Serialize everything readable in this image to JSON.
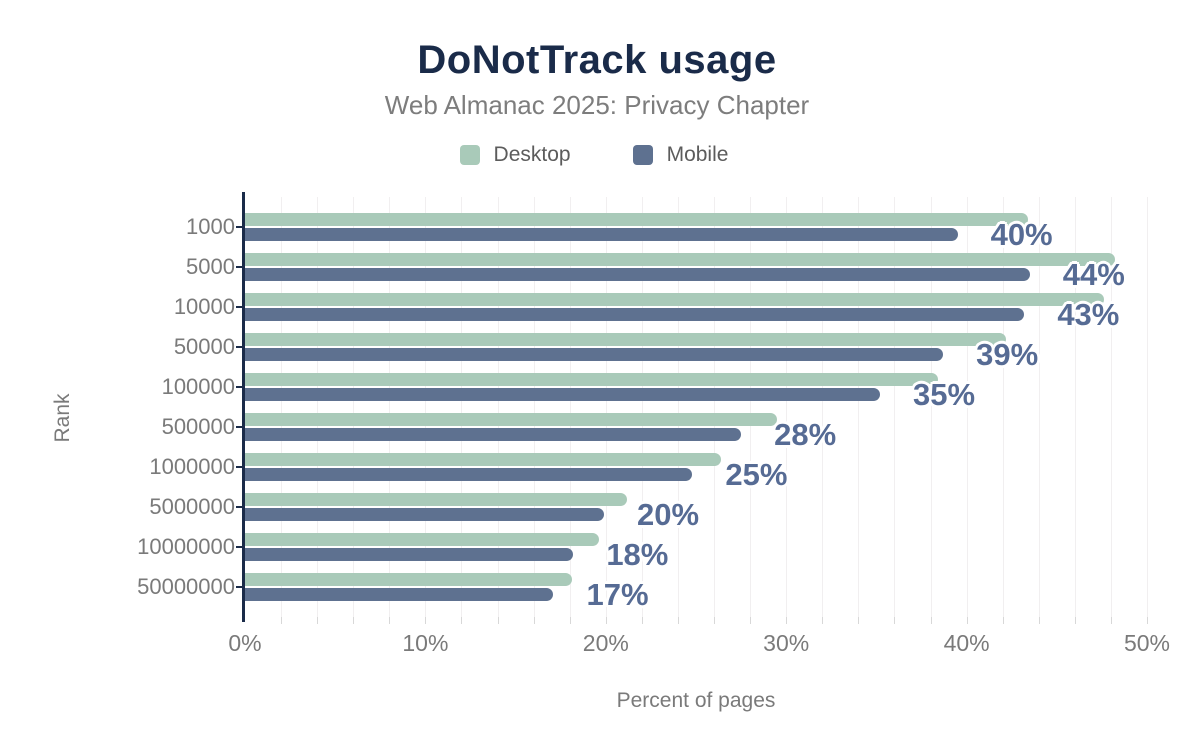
{
  "chart_data": {
    "type": "bar",
    "orientation": "horizontal",
    "title": "DoNotTrack usage",
    "subtitle": "Web Almanac 2025: Privacy Chapter",
    "xlabel": "Percent of pages",
    "ylabel": "Rank",
    "xlim": [
      0,
      50
    ],
    "x_tick_values": [
      0,
      10,
      20,
      30,
      40,
      50
    ],
    "x_tick_labels": [
      "0%",
      "10%",
      "20%",
      "30%",
      "40%",
      "50%"
    ],
    "grid": {
      "visible": true,
      "vertical_every_pct": 2
    },
    "legend_position": "top",
    "categories": [
      "1000",
      "5000",
      "10000",
      "50000",
      "100000",
      "500000",
      "1000000",
      "5000000",
      "10000000",
      "50000000"
    ],
    "series": [
      {
        "name": "Desktop",
        "color": "#a9cab9",
        "values": [
          43.4,
          48.2,
          47.6,
          42.2,
          38.4,
          29.5,
          26.4,
          21.2,
          19.6,
          18.1
        ]
      },
      {
        "name": "Mobile",
        "color": "#5e7190",
        "values": [
          39.5,
          43.5,
          43.2,
          38.7,
          35.2,
          27.5,
          24.8,
          19.9,
          18.2,
          17.1
        ]
      }
    ],
    "value_labels": [
      "40%",
      "44%",
      "43%",
      "39%",
      "35%",
      "28%",
      "25%",
      "20%",
      "18%",
      "17%"
    ]
  },
  "colors": {
    "background": "#ffffff",
    "title": "#1a2b49",
    "subtitle": "#7d7d7d",
    "legend_text": "#5c5c5c",
    "axis_text": "#7a7a7a",
    "axis_line": "#1a2b49",
    "gridline": "#f1eff0",
    "tick": "#d8d8d8",
    "desktop_bar": "#a9cab9",
    "mobile_bar": "#5e7190",
    "value_label_text": "#566b94"
  }
}
